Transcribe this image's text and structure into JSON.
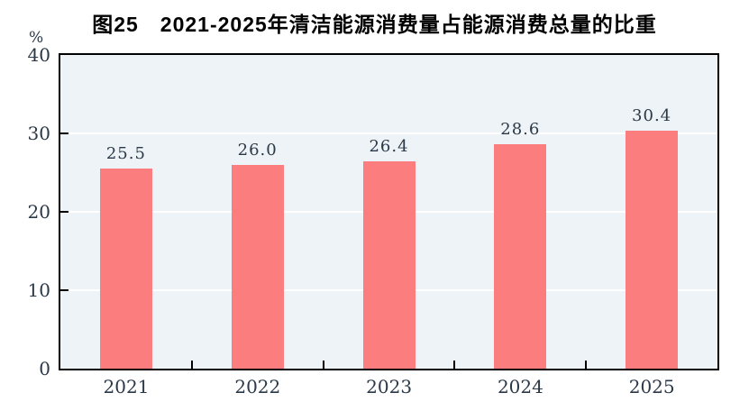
{
  "title": "图25　2021-2025年清洁能源消费量占能源消费总量的比重",
  "unit_label": "%",
  "colors": {
    "bar": "#fc7d7d",
    "plot_background": "#edf3f6",
    "gridline": "#ffffff",
    "axis": "#000000",
    "tick_text": "#2b3847",
    "title_text": "#000000"
  },
  "chart_data": {
    "type": "bar",
    "title": "图25　2021-2025年清洁能源消费量占能源消费总量的比重",
    "categories": [
      "2021",
      "2022",
      "2023",
      "2024",
      "2025"
    ],
    "values": [
      25.5,
      26.0,
      26.4,
      28.6,
      30.4
    ],
    "value_labels": [
      "25.5",
      "26.0",
      "26.4",
      "28.6",
      "30.4"
    ],
    "xlabel": "",
    "ylabel": "%",
    "ylim": [
      0,
      40
    ],
    "yticks": [
      0,
      10,
      20,
      30,
      40
    ],
    "ytick_labels": [
      "0",
      "10",
      "20",
      "30",
      "40"
    ],
    "grid": "horizontal-white-behind-bars",
    "legend_position": "none"
  }
}
